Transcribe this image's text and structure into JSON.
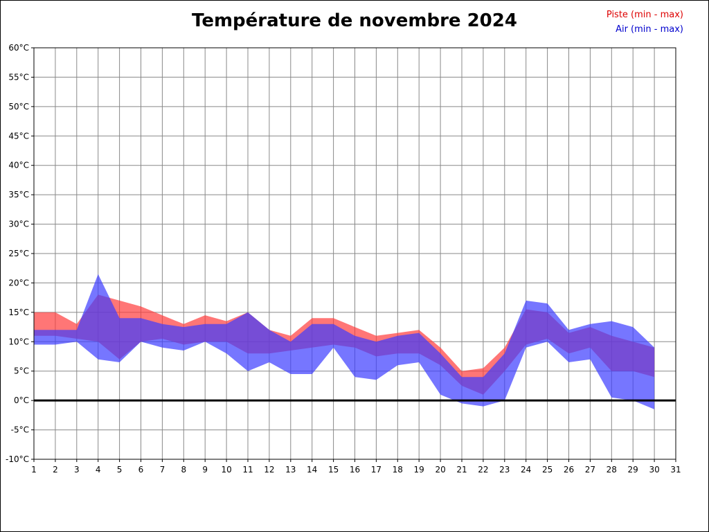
{
  "title": "Température de novembre 2024",
  "legend": {
    "piste": "Piste (min - max)",
    "air": "Air (min - max)"
  },
  "colors": {
    "piste_legend": "#dd0000",
    "air_legend": "#0000cd",
    "piste_fill": "#ff3c3c",
    "air_fill": "#3c3cff",
    "grid": "#888888",
    "axis": "#000000",
    "zero_line": "#000000"
  },
  "chart_data": {
    "type": "area",
    "title": "Température de novembre 2024",
    "xlabel": "",
    "ylabel": "",
    "xlim": [
      1,
      31
    ],
    "ylim": [
      -10,
      60
    ],
    "ytick_step": 5,
    "ytick_suffix": "°C",
    "xticks": [
      1,
      2,
      3,
      4,
      5,
      6,
      7,
      8,
      9,
      10,
      11,
      12,
      13,
      14,
      15,
      16,
      17,
      18,
      19,
      20,
      21,
      22,
      23,
      24,
      25,
      26,
      27,
      28,
      29,
      30,
      31
    ],
    "grid": true,
    "zero_line": true,
    "legend_position": "top-right",
    "days": [
      1,
      2,
      3,
      4,
      5,
      6,
      7,
      8,
      9,
      10,
      11,
      12,
      13,
      14,
      15,
      16,
      17,
      18,
      19,
      20,
      21,
      22,
      23,
      24,
      25,
      26,
      27,
      28,
      29,
      30
    ],
    "series": [
      {
        "name": "Piste (min - max)",
        "max": [
          15,
          15,
          13,
          18,
          17,
          16,
          14.5,
          13,
          14.5,
          13.5,
          15,
          12,
          11,
          14,
          14,
          12.5,
          11,
          11.5,
          12,
          9,
          5,
          5.5,
          9,
          15.5,
          15,
          11.5,
          12.5,
          11,
          10,
          9
        ],
        "min": [
          11,
          11,
          10.5,
          10,
          7,
          10,
          10.5,
          9.5,
          10,
          10,
          8,
          8,
          8.5,
          9,
          9.5,
          9,
          7.5,
          8,
          8,
          6,
          2.5,
          1,
          5,
          9.5,
          10.5,
          8,
          9,
          5,
          5,
          4
        ]
      },
      {
        "name": "Air (min - max)",
        "max": [
          12,
          12,
          12,
          21.5,
          14,
          14,
          13,
          12.5,
          13,
          13,
          15,
          12,
          10,
          13,
          13,
          11,
          10,
          11,
          11.5,
          8,
          4,
          4,
          8,
          17,
          16.5,
          12,
          13,
          13.5,
          12.5,
          9
        ],
        "min": [
          9.5,
          9.5,
          10,
          7,
          6.5,
          10,
          9,
          8.5,
          10,
          8,
          5,
          6.5,
          4.5,
          4.5,
          9,
          4,
          3.5,
          6,
          6.5,
          1,
          -0.5,
          -1,
          0,
          9,
          10,
          6.5,
          7,
          0.5,
          0,
          -1.5
        ]
      }
    ]
  }
}
